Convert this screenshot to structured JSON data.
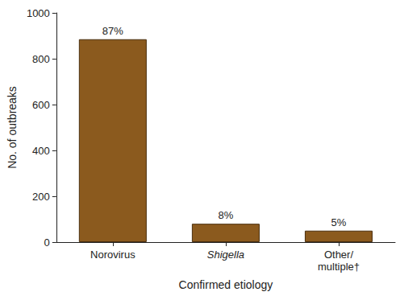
{
  "chart_data": {
    "type": "bar",
    "x_label": "Confirmed etiology",
    "y_label": "No. of outbreaks",
    "categories": [
      "Norovirus",
      "Shigella",
      "Other/\nmultiple†"
    ],
    "values": [
      885,
      80,
      50
    ],
    "annotations": [
      "87%",
      "8%",
      "5%"
    ],
    "color": "#8b5a1e",
    "ylim": [
      0,
      1000
    ],
    "yticks": [
      0,
      200,
      400,
      600,
      800,
      1000
    ],
    "grid": false
  }
}
